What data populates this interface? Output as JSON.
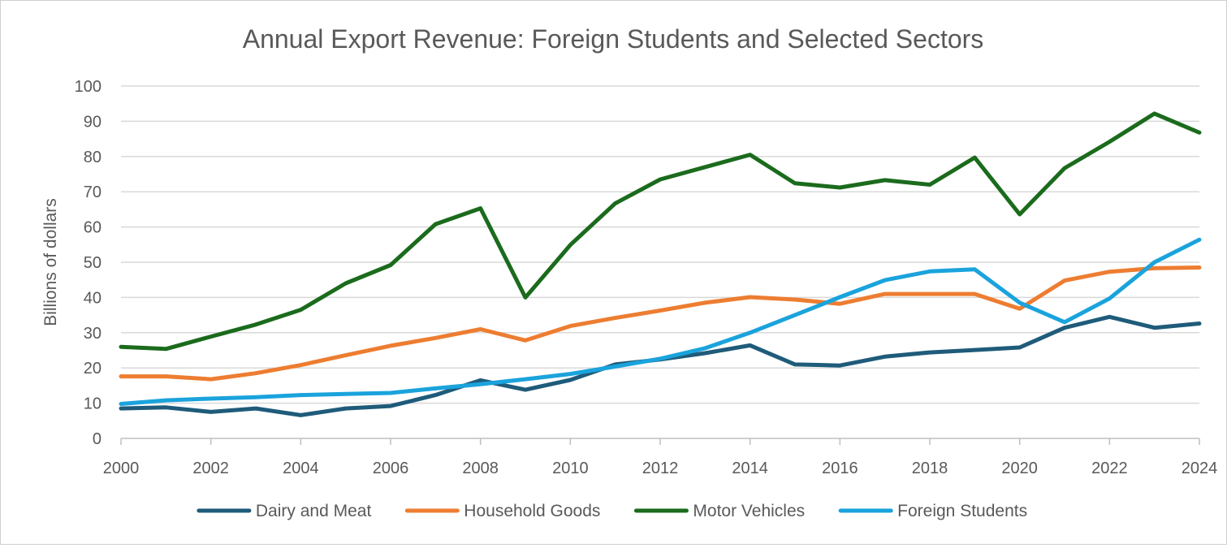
{
  "chart_data": {
    "type": "line",
    "title": "Annual Export Revenue: Foreign Students and Selected Sectors",
    "ylabel": "Billions of dollars",
    "xlabel": "",
    "ylim": [
      0,
      100
    ],
    "yticks": [
      0,
      10,
      20,
      30,
      40,
      50,
      60,
      70,
      80,
      90,
      100
    ],
    "xticks": [
      2000,
      2002,
      2004,
      2006,
      2008,
      2010,
      2012,
      2014,
      2016,
      2018,
      2020,
      2022,
      2024
    ],
    "x": [
      2000,
      2001,
      2002,
      2003,
      2004,
      2005,
      2006,
      2007,
      2008,
      2009,
      2010,
      2011,
      2012,
      2013,
      2014,
      2015,
      2016,
      2017,
      2018,
      2019,
      2020,
      2021,
      2022,
      2023,
      2024
    ],
    "grid": true,
    "legend_position": "bottom",
    "series": [
      {
        "name": "Dairy and Meat",
        "color": "#1f5b7a",
        "values": [
          8.5,
          8.8,
          7.5,
          8.5,
          6.6,
          8.5,
          9.2,
          12.3,
          16.5,
          13.8,
          16.6,
          21.0,
          22.4,
          24.2,
          26.4,
          21.0,
          20.7,
          23.2,
          24.4,
          25.1,
          25.8,
          31.4,
          34.5,
          31.4,
          32.6
        ]
      },
      {
        "name": "Household Goods",
        "color": "#ed7d31",
        "values": [
          17.6,
          17.6,
          16.8,
          18.5,
          20.8,
          23.6,
          26.3,
          28.5,
          31.0,
          27.8,
          31.9,
          34.2,
          36.3,
          38.5,
          40.1,
          39.4,
          38.2,
          41.0,
          41.0,
          41.0,
          36.8,
          44.8,
          47.3,
          48.3,
          48.5
        ]
      },
      {
        "name": "Motor Vehicles",
        "color": "#1b6b1d",
        "values": [
          26.0,
          25.4,
          28.9,
          32.3,
          36.5,
          44.0,
          49.2,
          60.8,
          65.3,
          40.0,
          54.9,
          66.7,
          73.5,
          77.0,
          80.5,
          72.4,
          71.2,
          73.3,
          72.0,
          79.7,
          63.6,
          76.7,
          84.2,
          92.2,
          86.8
        ]
      },
      {
        "name": "Foreign Students",
        "color": "#1aa3dc",
        "values": [
          9.8,
          10.8,
          11.3,
          11.7,
          12.3,
          12.6,
          12.9,
          14.2,
          15.4,
          16.8,
          18.3,
          20.4,
          22.6,
          25.6,
          30.0,
          35.0,
          40.1,
          44.9,
          47.4,
          48.0,
          38.5,
          33.0,
          39.7,
          50.0,
          56.4
        ]
      }
    ]
  }
}
